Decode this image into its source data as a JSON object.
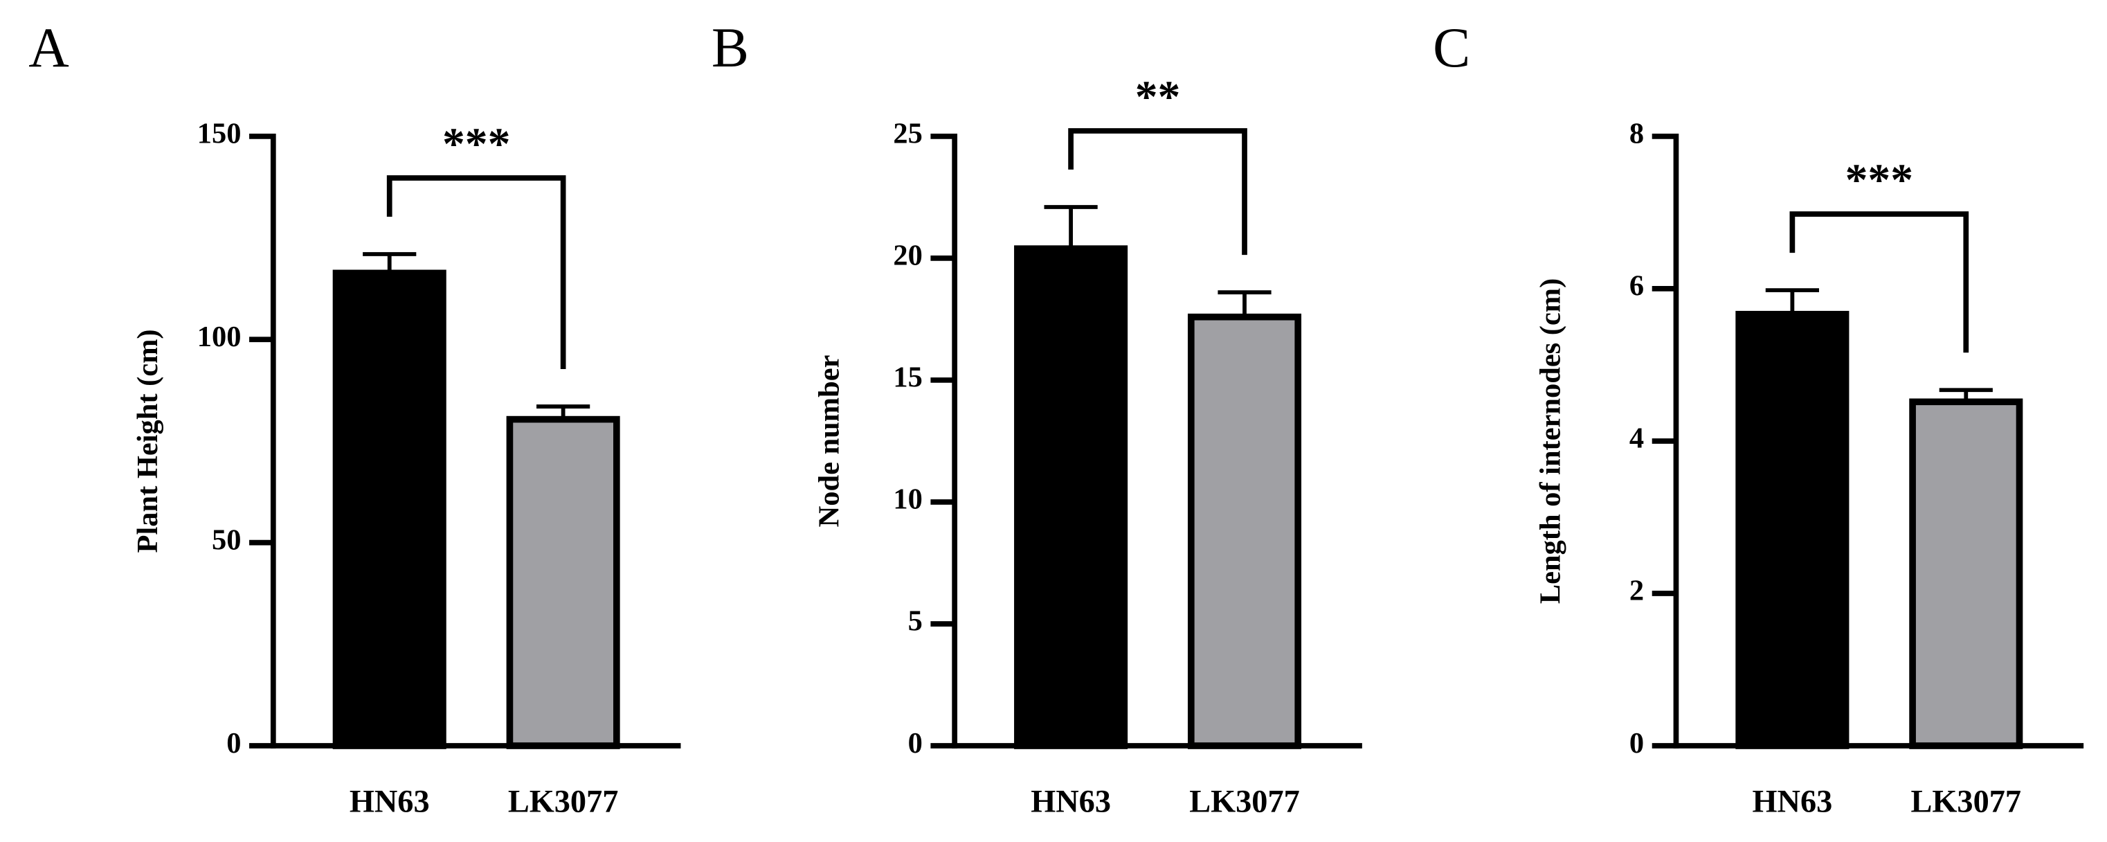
{
  "chart_data": [
    {
      "type": "bar",
      "panel": "A",
      "y_label": "Plant Height (cm)",
      "categories": [
        "HN63",
        "LK3077"
      ],
      "values": [
        117,
        81
      ],
      "errors": [
        4,
        2.5
      ],
      "colors": [
        "#000000",
        "#a0a0a4"
      ],
      "ylim": [
        0,
        150
      ],
      "yticks": [
        0,
        50,
        100,
        150
      ],
      "significance": "***"
    },
    {
      "type": "bar",
      "panel": "B",
      "y_label": "Node number",
      "categories": [
        "HN63",
        "LK3077"
      ],
      "values": [
        20.5,
        17.7
      ],
      "errors": [
        1.6,
        0.9
      ],
      "colors": [
        "#000000",
        "#a0a0a4"
      ],
      "ylim": [
        0,
        25
      ],
      "yticks": [
        0,
        5,
        10,
        15,
        20,
        25
      ],
      "significance": "**"
    },
    {
      "type": "bar",
      "panel": "C",
      "y_label": "Length of internodes (cm)",
      "categories": [
        "HN63",
        "LK3077"
      ],
      "values": [
        5.7,
        4.55
      ],
      "errors": [
        0.28,
        0.12
      ],
      "colors": [
        "#000000",
        "#a0a0a4"
      ],
      "ylim": [
        0,
        8
      ],
      "yticks": [
        0,
        2,
        4,
        6,
        8
      ],
      "significance": "***"
    }
  ]
}
